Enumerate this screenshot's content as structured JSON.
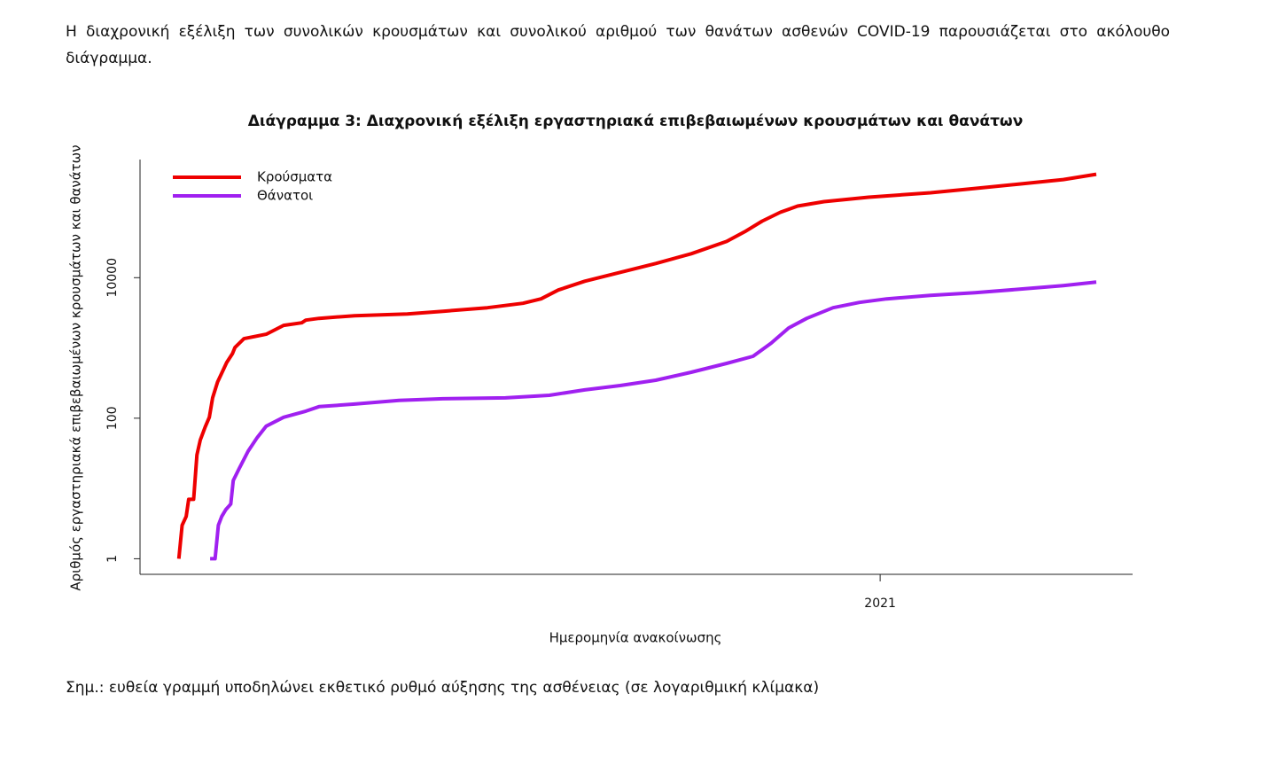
{
  "intro": [
    "Η διαχρονική εξέλιξη των συνολικών κρουσμάτων και συνολικού αριθμού των θανάτων ασθενών COVID-19 παρουσιάζεται στο ακόλουθο",
    "διάγραμμα."
  ],
  "chart_data": {
    "type": "line",
    "title": "Διάγραμμα 3: Διαχρονική εξέλιξη εργαστηριακά επιβεβαιωμένων κρουσμάτων και θανάτων",
    "xlabel": "Ημερομηνία ανακοίνωσης",
    "ylabel": "Αριθμός εργαστηριακά επιβεβαιωμένων κρουσμάτων και θανάτων",
    "log_y": true,
    "legend": "top-left",
    "xlim": [
      2020.103,
      2021.306
    ],
    "xticks": [
      2021
    ],
    "ylim": [
      0.6,
      480000
    ],
    "yticks": [
      1,
      100,
      10000
    ],
    "series": [
      {
        "name": "Κρούσματα",
        "color": "#ee0000",
        "x": [
          2020.15,
          2020.154,
          2020.159,
          2020.162,
          2020.168,
          2020.172,
          2020.176,
          2020.182,
          2020.187,
          2020.191,
          2020.197,
          2020.202,
          2020.208,
          2020.215,
          2020.218,
          2020.229,
          2020.256,
          2020.277,
          2020.299,
          2020.304,
          2020.32,
          2020.363,
          2020.427,
          2020.47,
          2020.524,
          2020.567,
          2020.589,
          2020.61,
          2020.642,
          2020.685,
          2020.728,
          2020.771,
          2020.814,
          2020.836,
          2020.857,
          2020.879,
          2020.9,
          2020.932,
          2020.986,
          2021.061,
          2021.115,
          2021.169,
          2021.222,
          2021.262
        ],
        "values": [
          1,
          3,
          4,
          7,
          7,
          30,
          49,
          75,
          103,
          195,
          328,
          438,
          620,
          829,
          1015,
          1355,
          1567,
          2093,
          2282,
          2490,
          2637,
          2878,
          3050,
          3327,
          3733,
          4315,
          4990,
          6668,
          8910,
          11900,
          15900,
          21870,
          32810,
          45100,
          63800,
          85300,
          104500,
          120700,
          139600,
          161300,
          186400,
          215400,
          249000,
          296500
        ]
      },
      {
        "name": "Θάνατοι",
        "color": "#a020f0",
        "x": [
          2020.188,
          2020.194,
          2020.198,
          2020.202,
          2020.207,
          2020.213,
          2020.216,
          2020.223,
          2020.234,
          2020.245,
          2020.256,
          2020.277,
          2020.304,
          2020.32,
          2020.363,
          2020.417,
          2020.47,
          2020.546,
          2020.599,
          2020.642,
          2020.685,
          2020.728,
          2020.771,
          2020.814,
          2020.846,
          2020.868,
          2020.889,
          2020.911,
          2020.943,
          2020.975,
          2021.008,
          2021.061,
          2021.115,
          2021.169,
          2021.222,
          2021.262
        ],
        "values": [
          1,
          1,
          3,
          4,
          5,
          6,
          13,
          19,
          34,
          53,
          77,
          103,
          126,
          146,
          159,
          179,
          189,
          195,
          212,
          253,
          292,
          347,
          451,
          603,
          760,
          1173,
          1919,
          2637,
          3733,
          4444,
          4990,
          5600,
          6110,
          6860,
          7710,
          8650
        ]
      }
    ]
  },
  "note": "Σημ.: ευθεία γραμμή υποδηλώνει εκθετικό ρυθμό αύξησης της ασθένειας (σε λογαριθμική κλίμακα)"
}
